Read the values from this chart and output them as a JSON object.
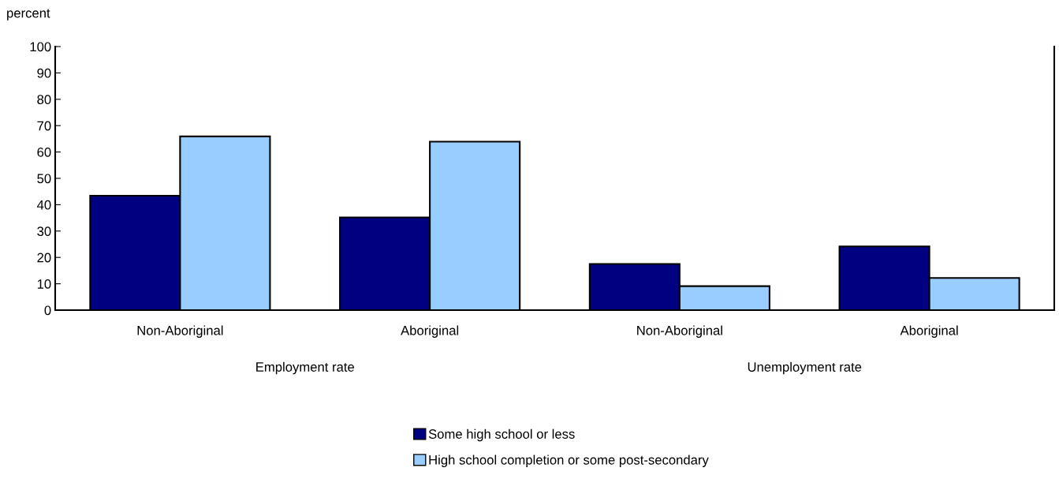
{
  "chart_data": {
    "type": "bar",
    "ylabel": "percent",
    "categories": [
      "Non-Aboriginal",
      "Aboriginal",
      "Non-Aboriginal",
      "Aboriginal"
    ],
    "series": [
      {
        "name": "Some high school or less",
        "color": "#000080",
        "values": [
          43.4,
          35.2,
          17.5,
          24.2
        ]
      },
      {
        "name": "High school completion or some post-secondary",
        "color": "#99ccff",
        "values": [
          65.9,
          63.9,
          9.1,
          12.2
        ]
      }
    ],
    "ylim": [
      0,
      100
    ],
    "yticks": [
      0,
      10,
      20,
      30,
      40,
      50,
      60,
      70,
      80,
      90,
      100
    ],
    "annotations": [
      "Employment rate",
      "Unemployment rate"
    ],
    "grid": false,
    "legend": "bottom"
  }
}
